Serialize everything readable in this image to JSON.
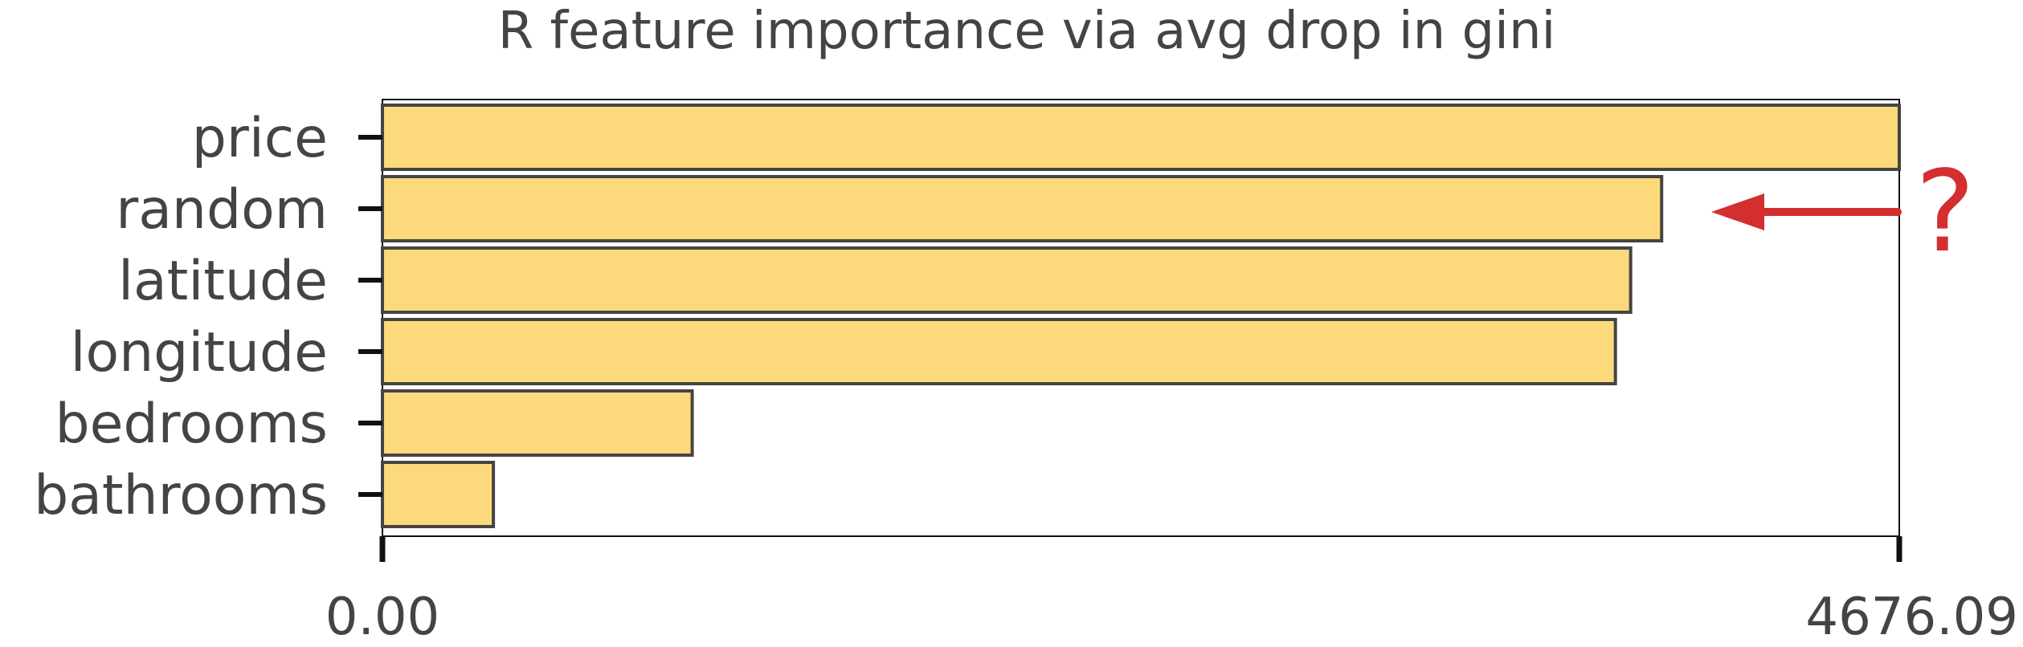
{
  "chart_data": {
    "type": "bar",
    "orientation": "horizontal",
    "title": "R feature importance via avg drop in gini",
    "categories": [
      "price",
      "random",
      "latitude",
      "longitude",
      "bedrooms",
      "bathrooms"
    ],
    "values": [
      4676.09,
      3943.5,
      3848.0,
      3801.0,
      955.0,
      342.0
    ],
    "xlim": [
      0,
      4676.09
    ],
    "x_ticks": [
      "0.00",
      "4676.09"
    ],
    "grid": false,
    "bar_color": "#fcd97a",
    "bar_edge_color": "#444444",
    "annotation": {
      "text": "?",
      "arrow_target": "random",
      "color": "#d32f2f"
    }
  }
}
